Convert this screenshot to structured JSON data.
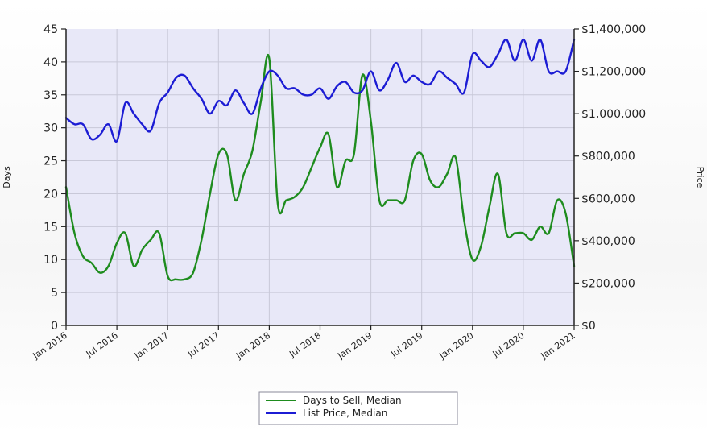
{
  "chart_data": {
    "type": "line",
    "ylabel_left": "Days",
    "ylabel_right": "Price",
    "ylim_left": [
      0,
      45
    ],
    "ylim_right": [
      0,
      1400000
    ],
    "yticks_left": [
      "0",
      "5",
      "10",
      "15",
      "20",
      "25",
      "30",
      "35",
      "40",
      "45"
    ],
    "yticks_right": [
      "$0",
      "$200,000",
      "$400,000",
      "$600,000",
      "$800,000",
      "$1,000,000",
      "$1,200,000",
      "$1,400,000"
    ],
    "x_tick_labels": [
      "Jan 2016",
      "Jul 2016",
      "Jan 2017",
      "Jul 2017",
      "Jan 2018",
      "Jul 2018",
      "Jan 2019",
      "Jul 2019",
      "Jan 2020",
      "Jul 2020",
      "Jan 2021"
    ],
    "xlim": [
      0,
      60
    ],
    "grid": true,
    "legend_position": "bottom-center",
    "colors": {
      "plot_background": "#e8e8f8",
      "grid": "#c8c8d8",
      "axis": "#222222"
    },
    "series": [
      {
        "name": "Days to Sell, Median",
        "axis": "left",
        "color": "#1e8c1e",
        "x": [
          0,
          1,
          2,
          3,
          4,
          5,
          6,
          7,
          8,
          9,
          10,
          11,
          12,
          13,
          14,
          15,
          16,
          17,
          18,
          19,
          20,
          21,
          22,
          23,
          24,
          25,
          26,
          27,
          28,
          29,
          30,
          31,
          32,
          33,
          34,
          35,
          36,
          37,
          38,
          39,
          40,
          41,
          42,
          43,
          44,
          45,
          46,
          47,
          48,
          49,
          50,
          51,
          52,
          53,
          54,
          55,
          56,
          57,
          58,
          59,
          60
        ],
        "values": [
          21,
          14,
          10.5,
          9.5,
          8,
          9,
          12.5,
          14,
          9,
          11.5,
          13,
          14,
          7.5,
          7,
          7,
          8,
          13,
          20,
          26,
          26,
          19,
          23,
          26.5,
          34,
          40.5,
          18.5,
          19,
          19.5,
          21,
          24,
          27,
          29,
          21,
          25,
          26,
          38,
          31,
          19,
          19,
          19,
          19,
          25,
          26,
          22,
          21,
          23,
          25.5,
          16,
          10,
          12,
          18,
          23,
          14,
          14,
          14,
          13,
          15,
          14,
          19,
          17,
          9
        ]
      },
      {
        "name": "List Price, Median",
        "axis": "right",
        "color": "#1c1cd4",
        "x": [
          0,
          1,
          2,
          3,
          4,
          5,
          6,
          7,
          8,
          9,
          10,
          11,
          12,
          13,
          14,
          15,
          16,
          17,
          18,
          19,
          20,
          21,
          22,
          23,
          24,
          25,
          26,
          27,
          28,
          29,
          30,
          31,
          32,
          33,
          34,
          35,
          36,
          37,
          38,
          39,
          40,
          41,
          42,
          43,
          44,
          45,
          46,
          47,
          48,
          49,
          50,
          51,
          52,
          53,
          54,
          55,
          56,
          57,
          58,
          59,
          60
        ],
        "values": [
          980000,
          950000,
          950000,
          880000,
          900000,
          950000,
          870000,
          1050000,
          1000000,
          950000,
          920000,
          1050000,
          1100000,
          1170000,
          1180000,
          1120000,
          1070000,
          1000000,
          1060000,
          1040000,
          1110000,
          1050000,
          1000000,
          1120000,
          1200000,
          1180000,
          1120000,
          1120000,
          1090000,
          1090000,
          1120000,
          1070000,
          1130000,
          1150000,
          1100000,
          1110000,
          1200000,
          1110000,
          1160000,
          1240000,
          1150000,
          1180000,
          1150000,
          1140000,
          1200000,
          1170000,
          1140000,
          1100000,
          1280000,
          1250000,
          1220000,
          1280000,
          1350000,
          1250000,
          1350000,
          1250000,
          1350000,
          1200000,
          1200000,
          1200000,
          1350000
        ]
      }
    ]
  }
}
